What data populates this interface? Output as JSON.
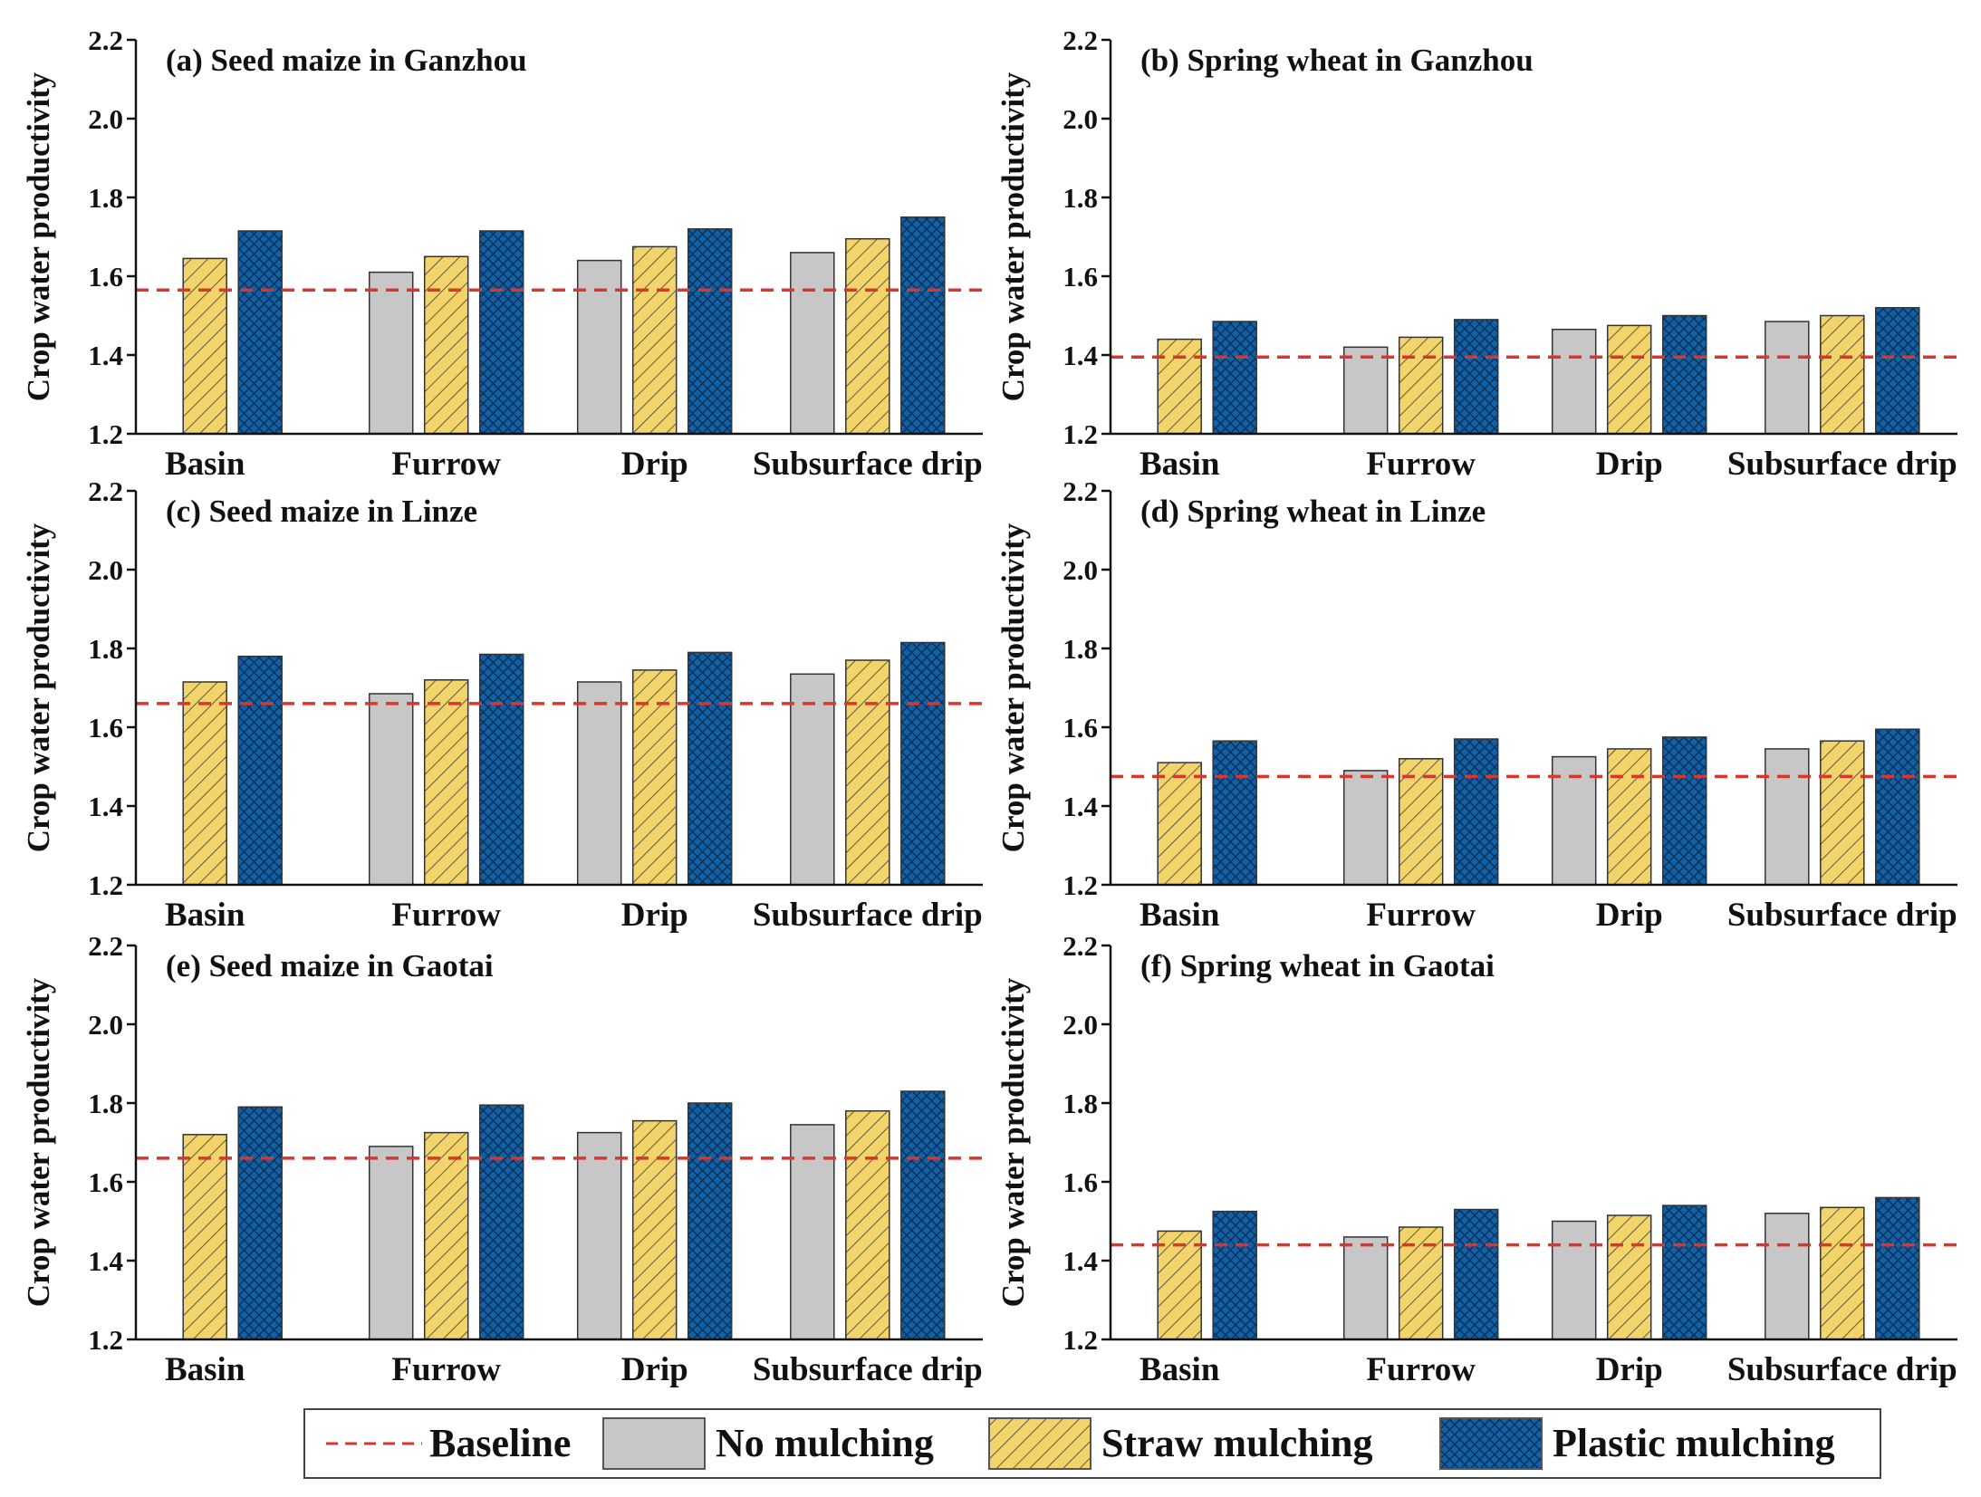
{
  "colors": {
    "baseline": "#d9362e",
    "no_mulching": "#c7c7c7",
    "straw_mulching": "#f2d46b",
    "plastic_mulching": "#1261a6",
    "axis": "#111111"
  },
  "legend": {
    "baseline": "Baseline",
    "no_mulching": "No mulching",
    "straw_mulching": "Straw mulching",
    "plastic_mulching": "Plastic mulching"
  },
  "chart_data": [
    {
      "type": "bar",
      "title": "(a) Seed maize in Ganzhou",
      "ylabel": "Crop water productivity",
      "ylim": [
        1.2,
        2.2
      ],
      "yticks": [
        "1.2",
        "1.4",
        "1.6",
        "1.8",
        "2.0",
        "2.2"
      ],
      "categories": [
        "Basin",
        "Furrow",
        "Drip",
        "Subsurface drip"
      ],
      "baseline": 1.565,
      "series": [
        {
          "name": "No mulching",
          "values": [
            null,
            1.61,
            1.64,
            1.66
          ]
        },
        {
          "name": "Straw mulching",
          "values": [
            1.645,
            1.65,
            1.675,
            1.695
          ]
        },
        {
          "name": "Plastic mulching",
          "values": [
            1.715,
            1.715,
            1.72,
            1.75
          ]
        }
      ]
    },
    {
      "type": "bar",
      "title": "(b) Spring wheat in Ganzhou",
      "ylabel": "Crop water productivity",
      "ylim": [
        1.2,
        2.2
      ],
      "yticks": [
        "1.2",
        "1.4",
        "1.6",
        "1.8",
        "2.0",
        "2.2"
      ],
      "categories": [
        "Basin",
        "Furrow",
        "Drip",
        "Subsurface drip"
      ],
      "baseline": 1.395,
      "series": [
        {
          "name": "No mulching",
          "values": [
            null,
            1.42,
            1.465,
            1.485
          ]
        },
        {
          "name": "Straw mulching",
          "values": [
            1.44,
            1.445,
            1.475,
            1.5
          ]
        },
        {
          "name": "Plastic mulching",
          "values": [
            1.485,
            1.49,
            1.5,
            1.52
          ]
        }
      ]
    },
    {
      "type": "bar",
      "title": "(c) Seed maize in Linze",
      "ylabel": "Crop water productivity",
      "ylim": [
        1.2,
        2.2
      ],
      "yticks": [
        "1.2",
        "1.4",
        "1.6",
        "1.8",
        "2.0",
        "2.2"
      ],
      "categories": [
        "Basin",
        "Furrow",
        "Drip",
        "Subsurface drip"
      ],
      "baseline": 1.66,
      "series": [
        {
          "name": "No mulching",
          "values": [
            null,
            1.685,
            1.715,
            1.735
          ]
        },
        {
          "name": "Straw mulching",
          "values": [
            1.715,
            1.72,
            1.745,
            1.77
          ]
        },
        {
          "name": "Plastic mulching",
          "values": [
            1.78,
            1.785,
            1.79,
            1.815
          ]
        }
      ]
    },
    {
      "type": "bar",
      "title": "(d) Spring wheat in Linze",
      "ylabel": "Crop water productivity",
      "ylim": [
        1.2,
        2.2
      ],
      "yticks": [
        "1.2",
        "1.4",
        "1.6",
        "1.8",
        "2.0",
        "2.2"
      ],
      "categories": [
        "Basin",
        "Furrow",
        "Drip",
        "Subsurface drip"
      ],
      "baseline": 1.475,
      "series": [
        {
          "name": "No mulching",
          "values": [
            null,
            1.49,
            1.525,
            1.545
          ]
        },
        {
          "name": "Straw mulching",
          "values": [
            1.51,
            1.52,
            1.545,
            1.565
          ]
        },
        {
          "name": "Plastic mulching",
          "values": [
            1.565,
            1.57,
            1.575,
            1.595
          ]
        }
      ]
    },
    {
      "type": "bar",
      "title": "(e) Seed maize in Gaotai",
      "ylabel": "Crop water productivity",
      "ylim": [
        1.2,
        2.2
      ],
      "yticks": [
        "1.2",
        "1.4",
        "1.6",
        "1.8",
        "2.0",
        "2.2"
      ],
      "categories": [
        "Basin",
        "Furrow",
        "Drip",
        "Subsurface drip"
      ],
      "baseline": 1.66,
      "series": [
        {
          "name": "No mulching",
          "values": [
            null,
            1.69,
            1.725,
            1.745
          ]
        },
        {
          "name": "Straw mulching",
          "values": [
            1.72,
            1.725,
            1.755,
            1.78
          ]
        },
        {
          "name": "Plastic mulching",
          "values": [
            1.79,
            1.795,
            1.8,
            1.83
          ]
        }
      ]
    },
    {
      "type": "bar",
      "title": "(f) Spring wheat in Gaotai",
      "ylabel": "Crop water productivity",
      "ylim": [
        1.2,
        2.2
      ],
      "yticks": [
        "1.2",
        "1.4",
        "1.6",
        "1.8",
        "2.0",
        "2.2"
      ],
      "categories": [
        "Basin",
        "Furrow",
        "Drip",
        "Subsurface drip"
      ],
      "baseline": 1.44,
      "series": [
        {
          "name": "No mulching",
          "values": [
            null,
            1.46,
            1.5,
            1.52
          ]
        },
        {
          "name": "Straw mulching",
          "values": [
            1.475,
            1.485,
            1.515,
            1.535
          ]
        },
        {
          "name": "Plastic mulching",
          "values": [
            1.525,
            1.53,
            1.54,
            1.56
          ]
        }
      ]
    }
  ]
}
